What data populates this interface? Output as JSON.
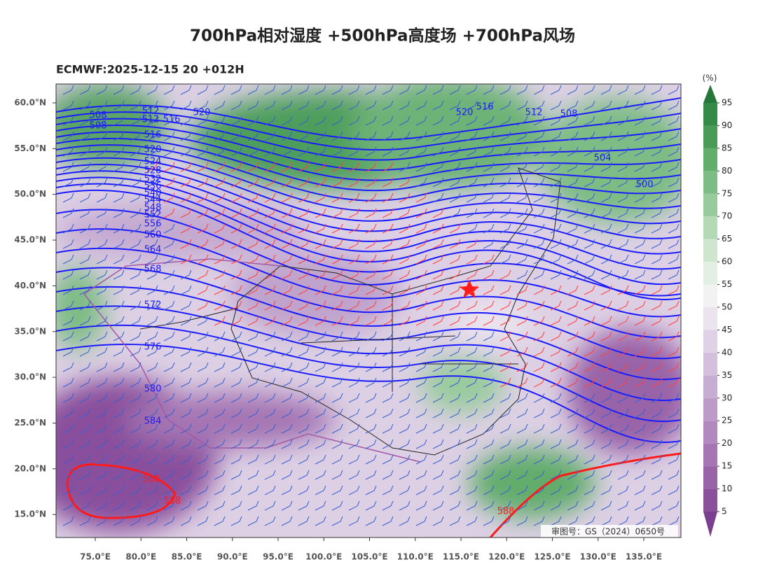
{
  "title": "700hPa相对湿度 +500hPa高度场 +700hPa风场",
  "subtitle": "ECMWF:2025-12-15 20 +012H",
  "unit": "(%)",
  "approval": "审图号：GS（2024）0650号",
  "map": {
    "lon_ticks": [
      {
        "value": 75,
        "label": "75.0°E"
      },
      {
        "value": 80,
        "label": "80.0°E"
      },
      {
        "value": 85,
        "label": "85.0°E"
      },
      {
        "value": 90,
        "label": "90.0°E"
      },
      {
        "value": 95,
        "label": "95.0°E"
      },
      {
        "value": 100,
        "label": "100.0°E"
      },
      {
        "value": 105,
        "label": "105.0°E"
      },
      {
        "value": 110,
        "label": "110.0°E"
      },
      {
        "value": 115,
        "label": "115.0°E"
      },
      {
        "value": 120,
        "label": "120.0°E"
      },
      {
        "value": 125,
        "label": "125.0°E"
      },
      {
        "value": 130,
        "label": "130.0°E"
      },
      {
        "value": 135,
        "label": "135.0°E"
      }
    ],
    "lat_ticks": [
      {
        "value": 60,
        "label": "60.0°N"
      },
      {
        "value": 55,
        "label": "55.0°N"
      },
      {
        "value": 50,
        "label": "50.0°N"
      },
      {
        "value": 45,
        "label": "45.0°N"
      },
      {
        "value": 40,
        "label": "40.0°N"
      },
      {
        "value": 35,
        "label": "35.0°N"
      },
      {
        "value": 30,
        "label": "30.0°N"
      },
      {
        "value": 25,
        "label": "25.0°N"
      },
      {
        "value": 20,
        "label": "20.0°N"
      },
      {
        "value": 15,
        "label": "15.0°N"
      }
    ],
    "height_labels": [
      508,
      508,
      512,
      512,
      516,
      520,
      516,
      520,
      524,
      528,
      532,
      536,
      540,
      544,
      548,
      552,
      556,
      560,
      564,
      568,
      572,
      576,
      580,
      584,
      520,
      516,
      512,
      508,
      504,
      500
    ],
    "ridge_labels": [
      588,
      588,
      588
    ],
    "height_color": "#1a1aff",
    "ridge_color": "#ff1a1a",
    "colorbar": {
      "ticks": [
        5,
        10,
        15,
        20,
        25,
        30,
        35,
        40,
        45,
        50,
        55,
        60,
        65,
        70,
        75,
        80,
        85,
        90,
        95
      ],
      "colors": [
        "#7b3f8f",
        "#8a509c",
        "#9963a8",
        "#a576b3",
        "#b189be",
        "#bd9bc8",
        "#c8add2",
        "#d4bfdc",
        "#e0d2e6",
        "#ebe4ef",
        "#f2f2f2",
        "#e3efe3",
        "#cde6cd",
        "#b3d9b5",
        "#98cb9c",
        "#7dbc84",
        "#62ac6c",
        "#4a9b58",
        "#358a47",
        "#24763a"
      ]
    }
  }
}
